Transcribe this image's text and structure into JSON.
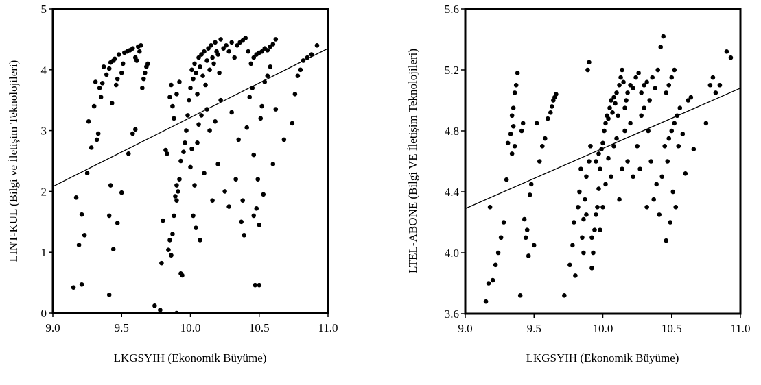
{
  "chart_data": [
    {
      "type": "scatter",
      "xlabel": "LKGSYIH (Ekonomik Büyüme)",
      "ylabel": "LINT-KUL (Bilgi ve İletişim Teknolojileri)",
      "xlim": [
        9.0,
        11.0
      ],
      "ylim": [
        0,
        5
      ],
      "x_ticks": [
        "9.0",
        "9.5",
        "10.0",
        "10.5",
        "11.0"
      ],
      "y_ticks": [
        "0",
        "1",
        "2",
        "3",
        "4",
        "5"
      ],
      "grid": false,
      "fit_line": {
        "x": [
          9.0,
          11.0
        ],
        "y": [
          2.08,
          4.35
        ]
      },
      "points": [
        [
          9.15,
          0.42
        ],
        [
          9.21,
          0.47
        ],
        [
          9.17,
          1.9
        ],
        [
          9.19,
          1.12
        ],
        [
          9.21,
          1.62
        ],
        [
          9.23,
          1.28
        ],
        [
          9.25,
          2.3
        ],
        [
          9.26,
          3.15
        ],
        [
          9.28,
          2.72
        ],
        [
          9.3,
          3.4
        ],
        [
          9.31,
          3.8
        ],
        [
          9.32,
          2.85
        ],
        [
          9.33,
          2.95
        ],
        [
          9.34,
          3.7
        ],
        [
          9.35,
          3.55
        ],
        [
          9.36,
          3.78
        ],
        [
          9.37,
          4.05
        ],
        [
          9.39,
          3.92
        ],
        [
          9.41,
          4.02
        ],
        [
          9.42,
          4.12
        ],
        [
          9.43,
          3.45
        ],
        [
          9.44,
          4.15
        ],
        [
          9.45,
          4.18
        ],
        [
          9.46,
          3.75
        ],
        [
          9.47,
          3.85
        ],
        [
          9.48,
          4.25
        ],
        [
          9.5,
          3.95
        ],
        [
          9.51,
          4.1
        ],
        [
          9.52,
          4.28
        ],
        [
          9.54,
          4.3
        ],
        [
          9.56,
          4.32
        ],
        [
          9.58,
          4.35
        ],
        [
          9.6,
          4.2
        ],
        [
          9.61,
          4.15
        ],
        [
          9.62,
          4.38
        ],
        [
          9.63,
          4.3
        ],
        [
          9.64,
          4.4
        ],
        [
          9.65,
          3.7
        ],
        [
          9.66,
          3.85
        ],
        [
          9.67,
          3.95
        ],
        [
          9.68,
          4.05
        ],
        [
          9.69,
          4.1
        ],
        [
          9.41,
          0.3
        ],
        [
          9.42,
          2.1
        ],
        [
          9.41,
          1.6
        ],
        [
          9.44,
          1.05
        ],
        [
          9.47,
          1.48
        ],
        [
          9.5,
          1.98
        ],
        [
          9.55,
          2.62
        ],
        [
          9.58,
          2.95
        ],
        [
          9.6,
          3.02
        ],
        [
          9.74,
          0.12
        ],
        [
          9.78,
          0.05
        ],
        [
          9.79,
          0.82
        ],
        [
          9.8,
          1.52
        ],
        [
          9.82,
          2.68
        ],
        [
          9.83,
          2.62
        ],
        [
          9.84,
          1.04
        ],
        [
          9.85,
          1.2
        ],
        [
          9.86,
          0.95
        ],
        [
          9.87,
          1.3
        ],
        [
          9.88,
          1.6
        ],
        [
          9.89,
          1.92
        ],
        [
          9.9,
          1.85
        ],
        [
          9.91,
          2.0
        ],
        [
          9.92,
          2.2
        ],
        [
          9.93,
          2.5
        ],
        [
          9.94,
          0.62
        ],
        [
          9.95,
          2.65
        ],
        [
          9.96,
          2.8
        ],
        [
          9.97,
          3.0
        ],
        [
          9.85,
          3.55
        ],
        [
          9.86,
          3.75
        ],
        [
          9.87,
          3.4
        ],
        [
          9.88,
          3.2
        ],
        [
          9.9,
          3.6
        ],
        [
          9.9,
          2.1
        ],
        [
          9.92,
          3.8
        ],
        [
          9.93,
          0.65
        ],
        [
          9.9,
          0.0
        ],
        [
          9.98,
          3.25
        ],
        [
          9.99,
          3.5
        ],
        [
          10.0,
          3.7
        ],
        [
          10.01,
          4.0
        ],
        [
          10.01,
          2.7
        ],
        [
          10.02,
          3.85
        ],
        [
          10.03,
          4.1
        ],
        [
          10.04,
          3.95
        ],
        [
          10.05,
          3.6
        ],
        [
          10.06,
          4.2
        ],
        [
          10.07,
          4.05
        ],
        [
          10.08,
          4.25
        ],
        [
          10.09,
          3.9
        ],
        [
          10.1,
          4.3
        ],
        [
          10.11,
          3.75
        ],
        [
          10.12,
          4.15
        ],
        [
          10.13,
          4.35
        ],
        [
          10.14,
          4.0
        ],
        [
          10.15,
          4.4
        ],
        [
          10.16,
          4.2
        ],
        [
          10.17,
          4.1
        ],
        [
          10.18,
          4.45
        ],
        [
          10.19,
          4.3
        ],
        [
          10.2,
          4.25
        ],
        [
          10.21,
          3.95
        ],
        [
          10.22,
          4.5
        ],
        [
          10.24,
          4.35
        ],
        [
          10.26,
          4.4
        ],
        [
          10.28,
          4.3
        ],
        [
          10.3,
          4.45
        ],
        [
          10.32,
          4.2
        ],
        [
          10.34,
          4.4
        ],
        [
          10.36,
          4.45
        ],
        [
          10.38,
          4.48
        ],
        [
          10.4,
          4.52
        ],
        [
          10.42,
          4.3
        ],
        [
          10.44,
          4.1
        ],
        [
          10.46,
          4.2
        ],
        [
          10.48,
          4.25
        ],
        [
          10.5,
          4.28
        ],
        [
          10.52,
          4.3
        ],
        [
          10.54,
          4.35
        ],
        [
          10.56,
          4.32
        ],
        [
          10.58,
          4.38
        ],
        [
          10.6,
          4.42
        ],
        [
          10.62,
          4.5
        ],
        [
          10.0,
          2.4
        ],
        [
          10.02,
          1.6
        ],
        [
          10.03,
          2.1
        ],
        [
          10.04,
          1.4
        ],
        [
          10.05,
          2.8
        ],
        [
          10.06,
          3.1
        ],
        [
          10.07,
          1.2
        ],
        [
          10.08,
          3.25
        ],
        [
          10.1,
          2.3
        ],
        [
          10.12,
          3.35
        ],
        [
          10.14,
          3.0
        ],
        [
          10.16,
          1.85
        ],
        [
          10.18,
          3.15
        ],
        [
          10.2,
          2.45
        ],
        [
          10.22,
          3.5
        ],
        [
          10.25,
          2.0
        ],
        [
          10.28,
          1.75
        ],
        [
          10.3,
          3.3
        ],
        [
          10.33,
          2.2
        ],
        [
          10.35,
          2.85
        ],
        [
          10.37,
          1.5
        ],
        [
          10.38,
          1.85
        ],
        [
          10.39,
          1.28
        ],
        [
          10.41,
          3.05
        ],
        [
          10.43,
          3.55
        ],
        [
          10.45,
          3.7
        ],
        [
          10.46,
          2.6
        ],
        [
          10.47,
          0.46
        ],
        [
          10.48,
          1.72
        ],
        [
          10.49,
          2.2
        ],
        [
          10.5,
          0.46
        ],
        [
          10.51,
          3.2
        ],
        [
          10.52,
          3.4
        ],
        [
          10.53,
          1.95
        ],
        [
          10.54,
          3.8
        ],
        [
          10.56,
          3.9
        ],
        [
          10.58,
          4.05
        ],
        [
          10.6,
          2.45
        ],
        [
          10.62,
          3.35
        ],
        [
          10.68,
          2.85
        ],
        [
          10.74,
          3.12
        ],
        [
          10.76,
          3.6
        ],
        [
          10.78,
          3.9
        ],
        [
          10.8,
          4.0
        ],
        [
          10.82,
          4.15
        ],
        [
          10.85,
          4.2
        ],
        [
          10.88,
          4.25
        ],
        [
          10.92,
          4.4
        ],
        [
          10.5,
          1.45
        ],
        [
          10.46,
          1.6
        ]
      ]
    },
    {
      "type": "scatter",
      "xlabel": "LKGSYIH (Ekonomik Büyüme)",
      "ylabel": "LTEL-ABONE (Bilgi VE İletişim Teknolojileri)",
      "xlim": [
        9.0,
        11.0
      ],
      "ylim": [
        3.6,
        5.6
      ],
      "x_ticks": [
        "9.0",
        "9.5",
        "10.0",
        "10.5",
        "11.0"
      ],
      "y_ticks": [
        "3.6",
        "4.0",
        "4.4",
        "4.8",
        "5.2",
        "5.6"
      ],
      "grid": false,
      "fit_line": {
        "x": [
          9.0,
          11.0
        ],
        "y": [
          4.29,
          5.08
        ]
      },
      "points": [
        [
          9.15,
          3.68
        ],
        [
          9.17,
          3.8
        ],
        [
          9.18,
          4.3
        ],
        [
          9.2,
          3.82
        ],
        [
          9.22,
          3.92
        ],
        [
          9.24,
          4.0
        ],
        [
          9.26,
          4.1
        ],
        [
          9.28,
          4.2
        ],
        [
          9.3,
          4.48
        ],
        [
          9.31,
          4.72
        ],
        [
          9.33,
          4.78
        ],
        [
          9.34,
          4.9
        ],
        [
          9.35,
          4.95
        ],
        [
          9.36,
          5.05
        ],
        [
          9.37,
          5.1
        ],
        [
          9.38,
          5.18
        ],
        [
          9.4,
          3.72
        ],
        [
          9.41,
          4.8
        ],
        [
          9.42,
          4.85
        ],
        [
          9.43,
          4.22
        ],
        [
          9.44,
          4.1
        ],
        [
          9.45,
          4.15
        ],
        [
          9.46,
          3.98
        ],
        [
          9.47,
          4.38
        ],
        [
          9.48,
          4.45
        ],
        [
          9.5,
          4.05
        ],
        [
          9.52,
          4.85
        ],
        [
          9.54,
          4.6
        ],
        [
          9.56,
          4.7
        ],
        [
          9.58,
          4.75
        ],
        [
          9.6,
          4.88
        ],
        [
          9.62,
          4.92
        ],
        [
          9.63,
          4.96
        ],
        [
          9.64,
          5.0
        ],
        [
          9.65,
          5.02
        ],
        [
          9.66,
          5.04
        ],
        [
          9.34,
          4.65
        ],
        [
          9.35,
          4.83
        ],
        [
          9.36,
          4.7
        ],
        [
          9.72,
          3.72
        ],
        [
          9.76,
          3.92
        ],
        [
          9.78,
          4.05
        ],
        [
          9.79,
          4.2
        ],
        [
          9.8,
          3.85
        ],
        [
          9.82,
          4.3
        ],
        [
          9.83,
          4.4
        ],
        [
          9.84,
          4.55
        ],
        [
          9.85,
          4.1
        ],
        [
          9.86,
          4.22
        ],
        [
          9.87,
          4.35
        ],
        [
          9.88,
          4.5
        ],
        [
          9.89,
          5.2
        ],
        [
          9.9,
          5.25
        ],
        [
          9.9,
          4.6
        ],
        [
          9.91,
          4.7
        ],
        [
          9.92,
          3.9
        ],
        [
          9.93,
          4.0
        ],
        [
          9.94,
          4.15
        ],
        [
          9.95,
          4.25
        ],
        [
          9.96,
          4.3
        ],
        [
          9.97,
          4.42
        ],
        [
          9.98,
          4.55
        ],
        [
          9.99,
          4.68
        ],
        [
          10.0,
          4.72
        ],
        [
          10.01,
          4.8
        ],
        [
          10.02,
          4.85
        ],
        [
          10.03,
          4.9
        ],
        [
          10.04,
          4.88
        ],
        [
          10.05,
          4.95
        ],
        [
          10.06,
          5.0
        ],
        [
          10.07,
          4.92
        ],
        [
          10.08,
          5.02
        ],
        [
          10.09,
          4.98
        ],
        [
          10.1,
          5.05
        ],
        [
          10.11,
          4.9
        ],
        [
          10.12,
          5.1
        ],
        [
          10.13,
          5.15
        ],
        [
          10.14,
          5.2
        ],
        [
          10.15,
          5.12
        ],
        [
          10.16,
          4.95
        ],
        [
          10.17,
          5.0
        ],
        [
          10.18,
          5.05
        ],
        [
          10.2,
          5.1
        ],
        [
          10.22,
          5.08
        ],
        [
          10.24,
          5.15
        ],
        [
          10.26,
          5.18
        ],
        [
          10.28,
          5.05
        ],
        [
          10.3,
          5.1
        ],
        [
          10.32,
          5.12
        ],
        [
          10.34,
          5.0
        ],
        [
          10.36,
          5.15
        ],
        [
          10.38,
          5.08
        ],
        [
          10.4,
          5.2
        ],
        [
          10.42,
          5.35
        ],
        [
          10.44,
          5.42
        ],
        [
          10.46,
          5.05
        ],
        [
          10.48,
          5.1
        ],
        [
          10.5,
          5.15
        ],
        [
          10.52,
          5.2
        ],
        [
          10.0,
          4.3
        ],
        [
          10.02,
          4.45
        ],
        [
          10.04,
          4.62
        ],
        [
          10.06,
          4.5
        ],
        [
          10.08,
          4.7
        ],
        [
          10.1,
          4.75
        ],
        [
          10.12,
          4.35
        ],
        [
          10.14,
          4.55
        ],
        [
          10.16,
          4.8
        ],
        [
          10.18,
          4.6
        ],
        [
          10.2,
          4.85
        ],
        [
          10.22,
          4.5
        ],
        [
          10.25,
          4.7
        ],
        [
          10.28,
          4.9
        ],
        [
          10.32,
          4.3
        ],
        [
          10.35,
          4.6
        ],
        [
          10.37,
          4.35
        ],
        [
          10.39,
          4.45
        ],
        [
          10.41,
          4.25
        ],
        [
          10.43,
          4.5
        ],
        [
          10.45,
          4.7
        ],
        [
          10.46,
          4.08
        ],
        [
          10.47,
          4.6
        ],
        [
          10.48,
          4.75
        ],
        [
          10.49,
          4.2
        ],
        [
          10.5,
          4.8
        ],
        [
          10.51,
          4.4
        ],
        [
          10.52,
          4.85
        ],
        [
          10.53,
          4.3
        ],
        [
          10.54,
          4.9
        ],
        [
          10.55,
          4.7
        ],
        [
          10.56,
          4.95
        ],
        [
          10.58,
          4.78
        ],
        [
          10.6,
          4.52
        ],
        [
          10.62,
          5.0
        ],
        [
          10.64,
          5.02
        ],
        [
          10.66,
          4.68
        ],
        [
          10.75,
          4.85
        ],
        [
          10.78,
          5.1
        ],
        [
          10.8,
          5.15
        ],
        [
          10.82,
          5.05
        ],
        [
          10.85,
          5.1
        ],
        [
          10.9,
          5.32
        ],
        [
          10.93,
          5.28
        ],
        [
          9.97,
          4.65
        ],
        [
          9.95,
          4.6
        ],
        [
          9.92,
          4.1
        ],
        [
          9.88,
          4.25
        ],
        [
          9.86,
          4.0
        ],
        [
          9.98,
          4.15
        ],
        [
          10.3,
          4.95
        ],
        [
          10.33,
          4.8
        ],
        [
          10.27,
          4.55
        ]
      ]
    }
  ]
}
